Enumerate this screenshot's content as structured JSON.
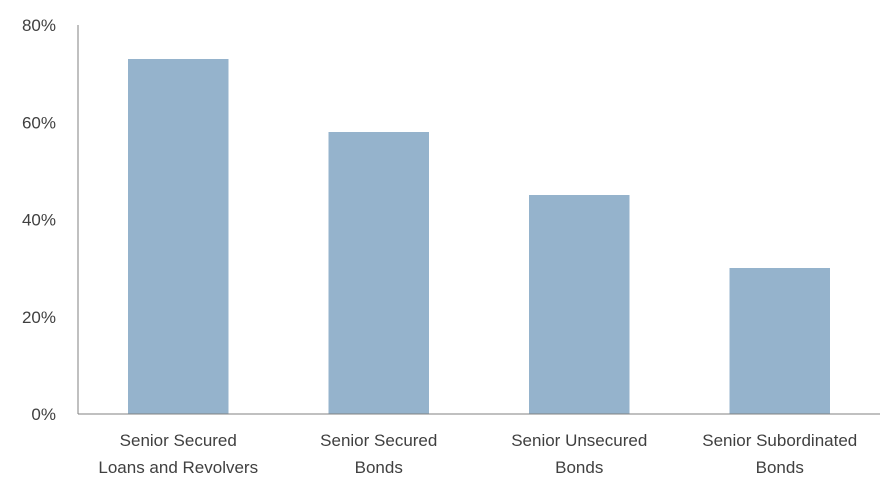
{
  "chart_data": {
    "type": "bar",
    "title": "",
    "xlabel": "",
    "ylabel": "",
    "categories": [
      [
        "Senior Secured",
        "Loans and Revolvers"
      ],
      [
        "Senior Secured",
        "Bonds"
      ],
      [
        "Senior Unsecured",
        "Bonds"
      ],
      [
        "Senior Subordinated",
        "Bonds"
      ]
    ],
    "values": [
      73,
      58,
      45,
      30
    ],
    "value_unit": "%",
    "ylim": [
      0,
      80
    ],
    "yticks": [
      0,
      20,
      40,
      60,
      80
    ],
    "ytick_labels": [
      "0%",
      "20%",
      "40%",
      "60%",
      "80%"
    ],
    "bar_color": "#95b3cc",
    "axis_color": "#808080",
    "text_color": "#404040",
    "grid": false,
    "legend": "none"
  }
}
